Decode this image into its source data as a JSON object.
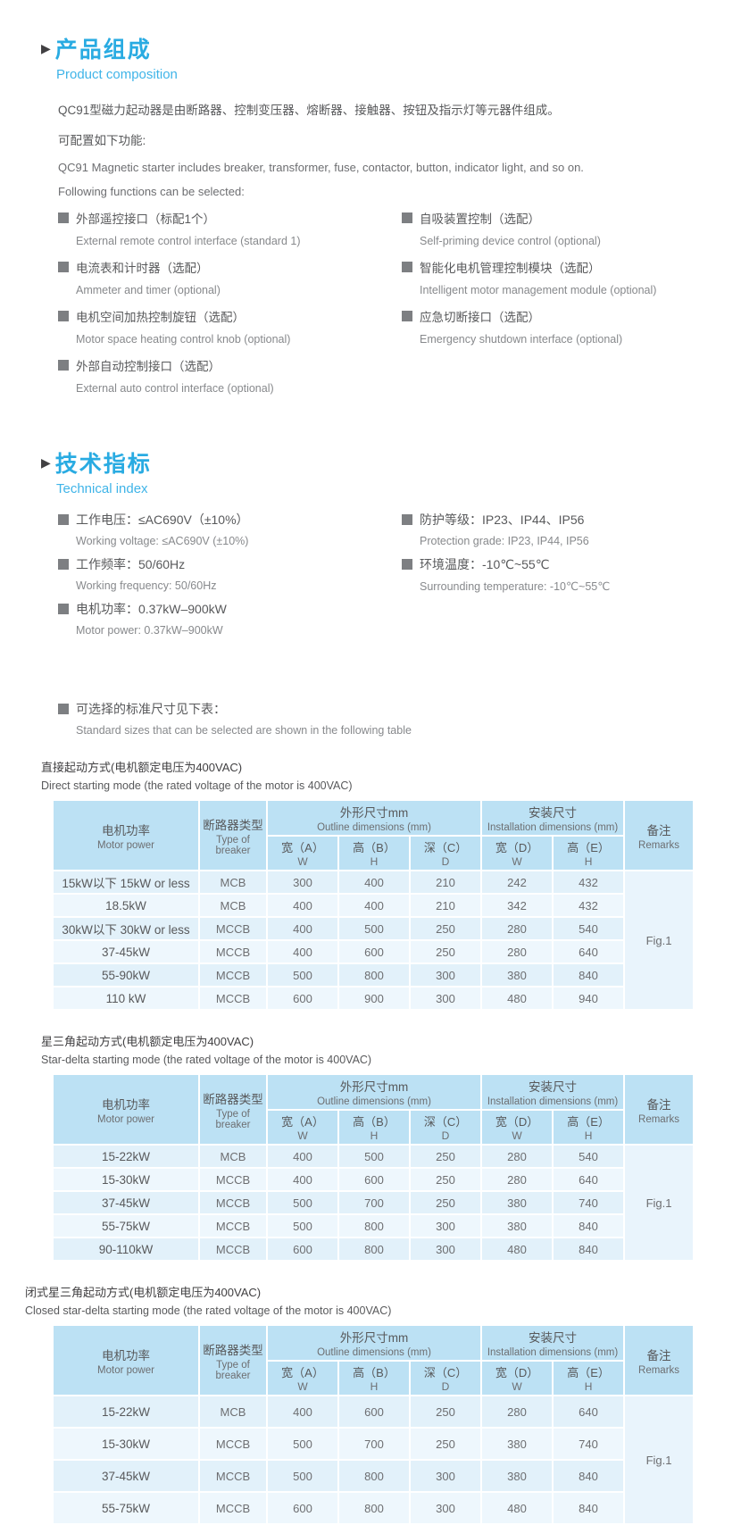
{
  "colors": {
    "accent_blue": "#29abe2",
    "table_header_bg": "#bce1f4",
    "row_light_blue": "#e2f1fa",
    "row_pale_blue": "#eef7fd"
  },
  "bullet_icon": "▶",
  "product_composition": {
    "title_zh": "产品组成",
    "title_en": "Product composition",
    "intro_zh": "QC91型磁力起动器是由断路器、控制变压器、熔断器、接触器、按钮及指示灯等元器件组成。",
    "config_zh": "可配置如下功能:",
    "intro_en": "QC91 Magnetic starter includes breaker, transformer, fuse, contactor, button, indicator light, and so on.",
    "config_en": "Following functions can be selected:",
    "features_left": [
      {
        "zh": "外部遥控接口（标配1个）",
        "en": "External remote control interface (standard 1)"
      },
      {
        "zh": "电流表和计时器（选配）",
        "en": "Ammeter and timer (optional)"
      },
      {
        "zh": "电机空间加热控制旋钮（选配）",
        "en": "Motor space heating control knob (optional)"
      },
      {
        "zh": "外部自动控制接口（选配）",
        "en": "External auto control interface (optional)"
      }
    ],
    "features_right": [
      {
        "zh": "自吸装置控制（选配）",
        "en": "Self-priming device control (optional)"
      },
      {
        "zh": "智能化电机管理控制模块（选配）",
        "en": "Intelligent motor management module (optional)"
      },
      {
        "zh": "应急切断接口（选配）",
        "en": "Emergency shutdown interface (optional)"
      }
    ]
  },
  "technical_index": {
    "title_zh": "技术指标",
    "title_en": "Technical index",
    "items_left": [
      {
        "zh": "工作电压：≤AC690V（±10%）",
        "en": "Working voltage: ≤AC690V (±10%)"
      },
      {
        "zh": "工作频率：50/60Hz",
        "en": "Working frequency: 50/60Hz"
      },
      {
        "zh": "电机功率：0.37kW–900kW",
        "en": "Motor power: 0.37kW–900kW"
      }
    ],
    "items_right": [
      {
        "zh": "防护等级：IP23、IP44、IP56",
        "en": "Protection grade: IP23, IP44, IP56"
      },
      {
        "zh": "环境温度：-10℃~55℃",
        "en": "Surrounding temperature: -10℃~55℃"
      }
    ]
  },
  "standard_sizes_note": {
    "zh": "可选择的标准尺寸见下表：",
    "en": "Standard sizes that can be selected are shown in the following table"
  },
  "table_header": {
    "motor_power_zh": "电机功率",
    "motor_power_en": "Motor power",
    "breaker_zh": "断路器类型",
    "breaker_en": "Type of breaker",
    "outline_zh": "外形尺寸mm",
    "outline_en": "Outline dimensions (mm)",
    "install_zh": "安装尺寸",
    "install_en": "Installation dimensions (mm)",
    "remarks_zh": "备注",
    "remarks_en": "Remarks",
    "sub": [
      {
        "zh": "宽（A）",
        "en": "W"
      },
      {
        "zh": "高（B）",
        "en": "H"
      },
      {
        "zh": "深（C）",
        "en": "D"
      },
      {
        "zh": "宽（D）",
        "en": "W"
      },
      {
        "zh": "高（E）",
        "en": "H"
      }
    ]
  },
  "tables": [
    {
      "caption_zh": "直接起动方式(电机额定电压为400VAC)",
      "caption_en": "Direct starting mode (the rated voltage of the motor is 400VAC)",
      "remark": "Fig.1",
      "rows": [
        [
          "15kW以下 15kW or less",
          "MCB",
          "300",
          "400",
          "210",
          "242",
          "432"
        ],
        [
          "18.5kW",
          "MCB",
          "400",
          "400",
          "210",
          "342",
          "432"
        ],
        [
          "30kW以下 30kW or less",
          "MCCB",
          "400",
          "500",
          "250",
          "280",
          "540"
        ],
        [
          "37-45kW",
          "MCCB",
          "400",
          "600",
          "250",
          "280",
          "640"
        ],
        [
          "55-90kW",
          "MCCB",
          "500",
          "800",
          "300",
          "380",
          "840"
        ],
        [
          "110 kW",
          "MCCB",
          "600",
          "900",
          "300",
          "480",
          "940"
        ]
      ]
    },
    {
      "caption_zh": "星三角起动方式(电机额定电压为400VAC)",
      "caption_en": "Star-delta starting mode (the rated voltage of the motor is 400VAC)",
      "remark": "Fig.1",
      "rows": [
        [
          "15-22kW",
          "MCB",
          "400",
          "500",
          "250",
          "280",
          "540"
        ],
        [
          "15-30kW",
          "MCCB",
          "400",
          "600",
          "250",
          "280",
          "640"
        ],
        [
          "37-45kW",
          "MCCB",
          "500",
          "700",
          "250",
          "380",
          "740"
        ],
        [
          "55-75kW",
          "MCCB",
          "500",
          "800",
          "300",
          "380",
          "840"
        ],
        [
          "90-110kW",
          "MCCB",
          "600",
          "800",
          "300",
          "480",
          "840"
        ]
      ]
    },
    {
      "caption_zh": "闭式星三角起动方式(电机额定电压为400VAC)",
      "caption_en": "Closed star-delta starting mode (the rated voltage of the motor is 400VAC)",
      "remark": "Fig.1",
      "rows": [
        [
          "15-22kW",
          "MCB",
          "400",
          "600",
          "250",
          "280",
          "640"
        ],
        [
          "15-30kW",
          "MCCB",
          "500",
          "700",
          "250",
          "380",
          "740"
        ],
        [
          "37-45kW",
          "MCCB",
          "500",
          "800",
          "300",
          "380",
          "840"
        ],
        [
          "55-75kW",
          "MCCB",
          "600",
          "800",
          "300",
          "480",
          "840"
        ]
      ]
    }
  ]
}
